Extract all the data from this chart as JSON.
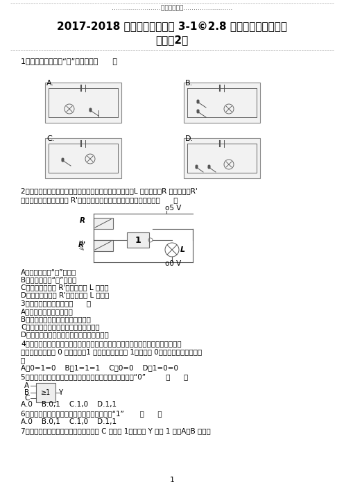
{
  "title_line": "2017-2018 学年度教科版选修 3-1©2.8 逻辑电路和控制电路",
  "subtitle": "作业（2）",
  "header_text": "……………………名校名师推荐……………………",
  "bg_color": "#ffffff",
  "text_color": "#000000",
  "footer": "1"
}
